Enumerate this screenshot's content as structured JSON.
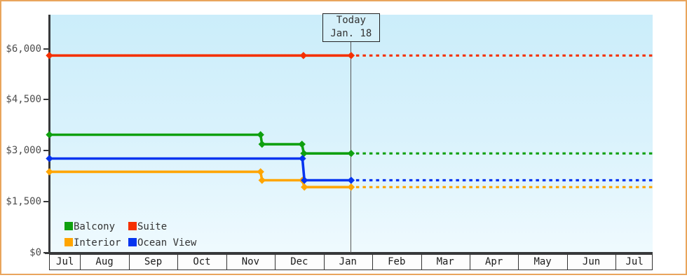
{
  "colors": {
    "frame_border": "#e9a55c",
    "plot_bg_top": "#cbedfa",
    "plot_bg_bottom": "#effafe",
    "axis": "#38393b",
    "today_line": "#555555",
    "suite": "#f53000",
    "balcony": "#0fa00f",
    "interior": "#ffa500",
    "ocean_view": "#0534f0"
  },
  "chart_data": {
    "type": "line",
    "title": "",
    "xlabel": "",
    "ylabel": "",
    "ylim": [
      0,
      7000
    ],
    "grid": false,
    "legend_position": "bottom-left",
    "y_axis": {
      "ticks": [
        {
          "label": "$0",
          "value": 0
        },
        {
          "label": "$1,500",
          "value": 1500
        },
        {
          "label": "$3,000",
          "value": 3000
        },
        {
          "label": "$4,500",
          "value": 4500
        },
        {
          "label": "$6,000",
          "value": 6000
        }
      ]
    },
    "x_axis": {
      "unit": "months",
      "labels": [
        "Jul",
        "Aug",
        "Sep",
        "Oct",
        "Nov",
        "Dec",
        "Jan",
        "Feb",
        "Mar",
        "Apr",
        "May",
        "Jun",
        "Jul"
      ],
      "start_month_frac": 0.383,
      "end_month_frac": 12.77
    },
    "today": {
      "line1": "Today",
      "line2": "Jan. 18",
      "month_frac": 6.58
    },
    "forecast_dashed_after_today": true,
    "series": [
      {
        "name": "Suite",
        "color": "#f53000",
        "marker": "diamond",
        "points": [
          {
            "date": "Jul 13",
            "m": 0.383,
            "value": 5800
          },
          {
            "date": "Dec 18",
            "m": 5.6,
            "value": 5800
          },
          {
            "date": "Jan 18",
            "m": 6.58,
            "value": 5800
          }
        ]
      },
      {
        "name": "Balcony",
        "color": "#0fa00f",
        "marker": "diamond",
        "points": [
          {
            "date": "Jul 13",
            "m": 0.383,
            "value": 3470
          },
          {
            "date": "Nov 22",
            "m": 4.72,
            "value": 3470
          },
          {
            "date": "Nov 22",
            "m": 4.75,
            "value": 3190
          },
          {
            "date": "Dec 18",
            "m": 5.57,
            "value": 3190
          },
          {
            "date": "Dec 18",
            "m": 5.61,
            "value": 2920
          },
          {
            "date": "Jan 18",
            "m": 6.58,
            "value": 2920
          }
        ]
      },
      {
        "name": "Interior",
        "color": "#ffa500",
        "marker": "diamond",
        "points": [
          {
            "date": "Jul 13",
            "m": 0.383,
            "value": 2380
          },
          {
            "date": "Nov 22",
            "m": 4.72,
            "value": 2380
          },
          {
            "date": "Nov 22",
            "m": 4.75,
            "value": 2130
          },
          {
            "date": "Dec 18",
            "m": 5.58,
            "value": 2130
          },
          {
            "date": "Dec 18",
            "m": 5.62,
            "value": 1930
          },
          {
            "date": "Jan 18",
            "m": 6.58,
            "value": 1930
          }
        ]
      },
      {
        "name": "Ocean View",
        "color": "#0534f0",
        "marker": "diamond",
        "points": [
          {
            "date": "Jul 13",
            "m": 0.383,
            "value": 2770
          },
          {
            "date": "Dec 18",
            "m": 5.58,
            "value": 2770
          },
          {
            "date": "Dec 18",
            "m": 5.62,
            "value": 2130
          },
          {
            "date": "Jan 18",
            "m": 6.58,
            "value": 2130
          }
        ]
      }
    ],
    "legend": {
      "columns": 2,
      "items": [
        {
          "label": "Balcony",
          "color": "#0fa00f"
        },
        {
          "label": "Suite",
          "color": "#f53000"
        },
        {
          "label": "Interior",
          "color": "#ffa500"
        },
        {
          "label": "Ocean View",
          "color": "#0534f0"
        }
      ]
    }
  }
}
